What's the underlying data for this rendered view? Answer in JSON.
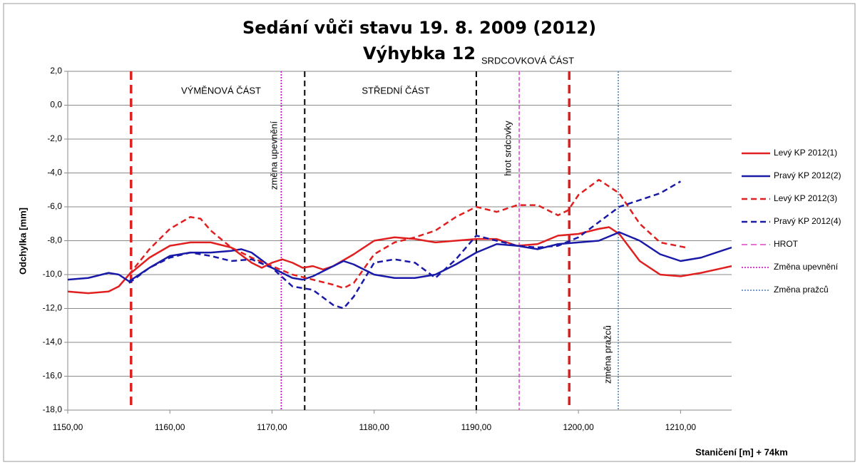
{
  "chart_data": {
    "type": "line",
    "title": "Sedání vůči stavu 19. 8. 2009 (2012)",
    "subtitle": "Výhybka 12",
    "x_label": "Staničení [m] + 74km",
    "y_label": "Odchylka [mm]",
    "xlim": [
      1150,
      1215
    ],
    "ylim": [
      -18,
      2
    ],
    "xticks": [
      {
        "value": 1150,
        "label": "1150,00"
      },
      {
        "value": 1160,
        "label": "1160,00"
      },
      {
        "value": 1170,
        "label": "1170,00"
      },
      {
        "value": 1180,
        "label": "1180,00"
      },
      {
        "value": 1190,
        "label": "1190,00"
      },
      {
        "value": 1200,
        "label": "1200,00"
      },
      {
        "value": 1210,
        "label": "1210,00"
      }
    ],
    "yticks": [
      {
        "value": 2,
        "label": "2,0"
      },
      {
        "value": 0,
        "label": "0,0"
      },
      {
        "value": -2,
        "label": "-2,0"
      },
      {
        "value": -4,
        "label": "-4,0"
      },
      {
        "value": -6,
        "label": "-6,0"
      },
      {
        "value": -8,
        "label": "-8,0"
      },
      {
        "value": -10,
        "label": "-10,0"
      },
      {
        "value": -12,
        "label": "-12,0"
      },
      {
        "value": -14,
        "label": "-14,0"
      },
      {
        "value": -16,
        "label": "-16,0"
      },
      {
        "value": -18,
        "label": "-18,0"
      }
    ],
    "grid": true,
    "legend": "right",
    "series": [
      {
        "name": "Levý KP 2012(1)",
        "color": "#e02020",
        "dash": "solid",
        "x": [
          1150,
          1152,
          1154,
          1155,
          1156,
          1158,
          1160,
          1162,
          1164,
          1166,
          1168,
          1169,
          1170,
          1171,
          1172,
          1173,
          1174,
          1175,
          1176,
          1178,
          1180,
          1182,
          1184,
          1186,
          1188,
          1190,
          1192,
          1194,
          1196,
          1198,
          1200,
          1202,
          1203,
          1204,
          1206,
          1208,
          1210,
          1212,
          1215
        ],
        "values": [
          -11.0,
          -11.1,
          -11.0,
          -10.7,
          -10.0,
          -9.0,
          -8.3,
          -8.1,
          -8.1,
          -8.4,
          -9.3,
          -9.6,
          -9.3,
          -9.1,
          -9.3,
          -9.6,
          -9.5,
          -9.7,
          -9.5,
          -8.8,
          -8.0,
          -7.8,
          -7.9,
          -8.1,
          -8.0,
          -7.9,
          -7.9,
          -8.3,
          -8.2,
          -7.7,
          -7.6,
          -7.3,
          -7.2,
          -7.6,
          -9.2,
          -10.0,
          -10.1,
          -9.9,
          -9.5
        ]
      },
      {
        "name": "Pravý KP 2012(2)",
        "color": "#1a1aa8",
        "dash": "solid",
        "x": [
          1150,
          1152,
          1154,
          1155,
          1156,
          1158,
          1160,
          1162,
          1164,
          1166,
          1167,
          1168,
          1170,
          1172,
          1173,
          1174,
          1176,
          1177,
          1178,
          1180,
          1182,
          1184,
          1186,
          1188,
          1190,
          1192,
          1194,
          1196,
          1198,
          1200,
          1202,
          1204,
          1206,
          1208,
          1210,
          1212,
          1215
        ],
        "values": [
          -10.3,
          -10.2,
          -9.9,
          -10.0,
          -10.4,
          -9.6,
          -8.9,
          -8.7,
          -8.7,
          -8.6,
          -8.5,
          -8.7,
          -9.6,
          -10.2,
          -10.3,
          -10.1,
          -9.5,
          -9.2,
          -9.4,
          -10.0,
          -10.2,
          -10.2,
          -10.0,
          -9.4,
          -8.7,
          -8.2,
          -8.3,
          -8.5,
          -8.2,
          -8.1,
          -8.0,
          -7.5,
          -8.0,
          -8.8,
          -9.2,
          -9.0,
          -8.4
        ]
      },
      {
        "name": "Levý KP 2012(3)",
        "color": "#e02020",
        "dash": "dashed",
        "x": [
          1156,
          1158,
          1160,
          1162,
          1163,
          1164,
          1166,
          1168,
          1170,
          1172,
          1174,
          1176,
          1177,
          1178,
          1180,
          1182,
          1184,
          1186,
          1188,
          1190,
          1192,
          1194,
          1196,
          1198,
          1199,
          1200,
          1202,
          1204,
          1206,
          1208,
          1210.5
        ],
        "values": [
          -10.0,
          -8.5,
          -7.3,
          -6.6,
          -6.7,
          -7.4,
          -8.4,
          -9.0,
          -9.5,
          -10.0,
          -10.3,
          -10.6,
          -10.8,
          -10.5,
          -8.8,
          -8.1,
          -7.8,
          -7.4,
          -6.6,
          -6.0,
          -6.3,
          -5.9,
          -5.9,
          -6.5,
          -6.2,
          -5.3,
          -4.4,
          -5.2,
          -7.0,
          -8.1,
          -8.4
        ]
      },
      {
        "name": "Pravý KP 2012(4)",
        "color": "#1a1aa8",
        "dash": "dashed",
        "x": [
          1156,
          1158,
          1160,
          1162,
          1164,
          1166,
          1168,
          1170,
          1172,
          1174,
          1176,
          1177,
          1178,
          1180,
          1182,
          1184,
          1186,
          1188,
          1190,
          1192,
          1194,
          1196,
          1198,
          1200,
          1202,
          1204,
          1206,
          1208,
          1210
        ],
        "values": [
          -10.5,
          -9.6,
          -9.0,
          -8.7,
          -8.9,
          -9.2,
          -9.1,
          -9.6,
          -10.7,
          -10.9,
          -11.8,
          -12.0,
          -11.3,
          -9.3,
          -9.1,
          -9.3,
          -10.2,
          -9.1,
          -7.7,
          -8.0,
          -8.3,
          -8.4,
          -8.3,
          -7.8,
          -6.9,
          -6.0,
          -5.6,
          -5.2,
          -4.5
        ]
      }
    ],
    "reference_lines": [
      {
        "x": 1156.2,
        "color": "#e02020",
        "dash": "heavy"
      },
      {
        "x": 1173.2,
        "color": "#000000",
        "dash": "dashed"
      },
      {
        "x": 1190,
        "color": "#000000",
        "dash": "dashed"
      },
      {
        "x": 1199.1,
        "color": "#e02020",
        "dash": "heavy"
      },
      {
        "name": "HROT",
        "x": 1194.2,
        "color": "#dd44cc",
        "dash": "dashed"
      },
      {
        "name": "Změna upevnění",
        "x": 1170.9,
        "color": "#cc00cc",
        "dash": "dotted"
      },
      {
        "name": "Změna pražců",
        "x": 1203.9,
        "color": "#4a7ab8",
        "dash": "dotted"
      }
    ],
    "annotations": [
      "VÝMĚNOVÁ ČÁST",
      "STŘEDNÍ ČÁST",
      "SRDCOVKOVÁ ČÁST",
      "změna upevnění",
      "hrot srdcovky",
      "změna pražců"
    ]
  }
}
